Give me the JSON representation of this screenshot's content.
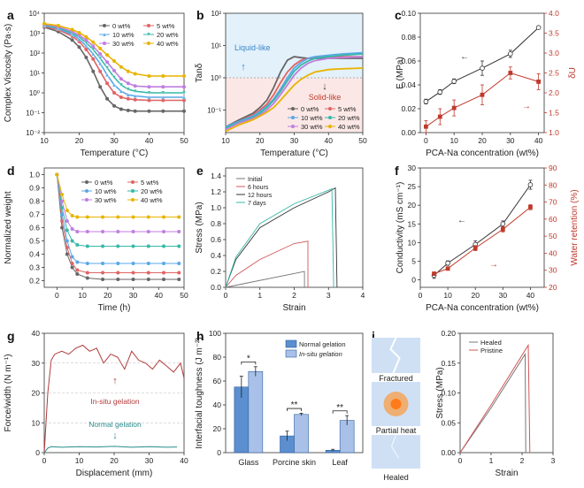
{
  "chart_data": [
    {
      "id": "a",
      "type": "line",
      "panel_label": "a",
      "xlabel": "Temperature (°C)",
      "ylabel": "Complex Viscosity (Pa·s)",
      "xlim": [
        10,
        50
      ],
      "ylim_log": [
        -2,
        4
      ],
      "xticks": [
        "10",
        "20",
        "30",
        "40",
        "50"
      ],
      "yticks": [
        "10⁻²",
        "10⁻¹",
        "10⁰",
        "10¹",
        "10²",
        "10³",
        "10⁴"
      ],
      "x": [
        10,
        14,
        18,
        20,
        22,
        24,
        26,
        28,
        30,
        32,
        34,
        36,
        40,
        44,
        50
      ],
      "series": [
        {
          "name": "0 wt%",
          "color": "#666666",
          "marker": "circle",
          "values": [
            2000,
            1200,
            450,
            200,
            60,
            12,
            2,
            0.5,
            0.22,
            0.15,
            0.13,
            0.12,
            0.12,
            0.12,
            0.12
          ]
        },
        {
          "name": "5 wt%",
          "color": "#e06464",
          "marker": "circle",
          "values": [
            2200,
            1500,
            700,
            380,
            150,
            50,
            12,
            3,
            1,
            0.6,
            0.5,
            0.45,
            0.42,
            0.42,
            0.42
          ]
        },
        {
          "name": "10 wt%",
          "color": "#5aa7e8",
          "marker": "triangle",
          "values": [
            2400,
            1700,
            850,
            500,
            230,
            90,
            30,
            8,
            2.5,
            1.2,
            0.8,
            0.7,
            0.6,
            0.6,
            0.6
          ]
        },
        {
          "name": "20 wt%",
          "color": "#36b8a8",
          "marker": "triangle-down",
          "values": [
            2600,
            1900,
            1000,
            650,
            330,
            150,
            55,
            18,
            6,
            2.5,
            1.5,
            1.2,
            1,
            1,
            1
          ]
        },
        {
          "name": "30 wt%",
          "color": "#c07ee0",
          "marker": "circle",
          "values": [
            2800,
            2100,
            1200,
            800,
            450,
            220,
            90,
            35,
            13,
            5,
            3,
            2.2,
            2,
            2,
            2
          ]
        },
        {
          "name": "40 wt%",
          "color": "#e8b400",
          "marker": "circle",
          "values": [
            3000,
            2400,
            1500,
            1050,
            650,
            350,
            170,
            80,
            40,
            20,
            12,
            9,
            7,
            7,
            7
          ]
        }
      ],
      "legend": [
        "0 wt%",
        "5 wt%",
        "10 wt%",
        "20 wt%",
        "30 wt%",
        "40 wt%"
      ]
    },
    {
      "id": "b",
      "type": "line",
      "panel_label": "b",
      "xlabel": "Temperature (°C)",
      "ylabel": "Tanδ",
      "xlim": [
        10,
        50
      ],
      "ylim_log": [
        -1.7,
        2
      ],
      "xticks": [
        "10",
        "20",
        "30",
        "40",
        "50"
      ],
      "yticks": [
        "10⁻¹",
        "10⁰",
        "10¹",
        "10²"
      ],
      "annotations": [
        "Liquid-like",
        "Solid-like"
      ],
      "x": [
        10,
        14,
        18,
        20,
        22,
        24,
        26,
        28,
        30,
        32,
        34,
        36,
        40,
        44,
        50
      ],
      "series": [
        {
          "name": "0 wt%",
          "color": "#666666",
          "values": [
            0.03,
            0.05,
            0.08,
            0.12,
            0.2,
            0.5,
            1.5,
            3.5,
            4.5,
            4.2,
            4,
            4,
            4,
            4,
            4
          ]
        },
        {
          "name": "5 wt%",
          "color": "#e06464",
          "values": [
            0.03,
            0.045,
            0.07,
            0.1,
            0.15,
            0.3,
            0.7,
            1.5,
            2.5,
            3.5,
            4,
            4.2,
            4.5,
            4.5,
            4.5
          ]
        },
        {
          "name": "10 wt%",
          "color": "#5aa7e8",
          "values": [
            0.03,
            0.045,
            0.065,
            0.09,
            0.13,
            0.22,
            0.45,
            1,
            2,
            3,
            4,
            4.5,
            5,
            5.5,
            6
          ]
        },
        {
          "name": "20 wt%",
          "color": "#36b8a8",
          "values": [
            0.028,
            0.042,
            0.06,
            0.08,
            0.12,
            0.2,
            0.38,
            0.8,
            1.6,
            2.5,
            3.3,
            4,
            4.5,
            5,
            5.5
          ]
        },
        {
          "name": "30 wt%",
          "color": "#c07ee0",
          "values": [
            0.025,
            0.04,
            0.055,
            0.07,
            0.1,
            0.16,
            0.3,
            0.6,
            1.2,
            2,
            2.8,
            3.4,
            4,
            4.2,
            4.5
          ]
        },
        {
          "name": "40 wt%",
          "color": "#e8b400",
          "values": [
            0.022,
            0.035,
            0.05,
            0.065,
            0.085,
            0.12,
            0.2,
            0.35,
            0.6,
            0.9,
            1.2,
            1.5,
            1.8,
            1.9,
            2
          ]
        }
      ],
      "legend": [
        "0 wt%",
        "5 wt%",
        "10 wt%",
        "20 wt%",
        "30 wt%",
        "40 wt%"
      ]
    },
    {
      "id": "c",
      "type": "line",
      "panel_label": "c",
      "xlabel": "PCA-Na concentration (wt%)",
      "ylabel": "E (MPa)",
      "ylabel2": "δU",
      "xlim": [
        -2,
        42
      ],
      "ylim": [
        0,
        0.1
      ],
      "ylim2": [
        1,
        4
      ],
      "xticks": [
        "0",
        "10",
        "20",
        "30",
        "40"
      ],
      "yticks": [
        "0.00",
        "0.02",
        "0.04",
        "0.06",
        "0.08",
        "0.10"
      ],
      "yticks2": [
        "1.0",
        "1.5",
        "2.0",
        "2.5",
        "3.0",
        "3.5",
        "4.0"
      ],
      "x": [
        0,
        5,
        10,
        20,
        30,
        40
      ],
      "series": [
        {
          "name": "E",
          "color": "#333333",
          "axis": "left",
          "values": [
            0.026,
            0.034,
            0.043,
            0.054,
            0.066,
            0.088
          ],
          "errors": [
            0.002,
            0.002,
            0.002,
            0.006,
            0.003,
            0.001
          ]
        },
        {
          "name": "δU",
          "color": "#c0392b",
          "axis": "right",
          "values": [
            1.15,
            1.4,
            1.62,
            1.95,
            2.5,
            2.28
          ],
          "errors": [
            0.15,
            0.2,
            0.2,
            0.25,
            0.15,
            0.2
          ]
        }
      ]
    },
    {
      "id": "d",
      "type": "line",
      "panel_label": "d",
      "xlabel": "Time (h)",
      "ylabel": "Normalized weight",
      "xlim": [
        -5,
        50
      ],
      "ylim": [
        0.15,
        1.05
      ],
      "xticks": [
        "0",
        "10",
        "20",
        "30",
        "40",
        "50"
      ],
      "yticks": [
        "0.2",
        "0.3",
        "0.4",
        "0.5",
        "0.6",
        "0.7",
        "0.8",
        "0.9",
        "1.0"
      ],
      "x": [
        0,
        2,
        4,
        6,
        8,
        12,
        18,
        24,
        30,
        36,
        42,
        48
      ],
      "series": [
        {
          "name": "0 wt%",
          "color": "#666666",
          "values": [
            1,
            0.6,
            0.4,
            0.3,
            0.25,
            0.22,
            0.21,
            0.21,
            0.21,
            0.21,
            0.21,
            0.21
          ]
        },
        {
          "name": "5 wt%",
          "color": "#e06464",
          "values": [
            1,
            0.65,
            0.45,
            0.33,
            0.28,
            0.26,
            0.26,
            0.26,
            0.26,
            0.26,
            0.26,
            0.26
          ]
        },
        {
          "name": "10 wt%",
          "color": "#5aa7e8",
          "values": [
            1,
            0.7,
            0.5,
            0.38,
            0.34,
            0.33,
            0.33,
            0.33,
            0.33,
            0.33,
            0.33,
            0.33
          ]
        },
        {
          "name": "20 wt%",
          "color": "#36b8a8",
          "values": [
            1,
            0.75,
            0.58,
            0.5,
            0.47,
            0.46,
            0.46,
            0.46,
            0.46,
            0.46,
            0.46,
            0.46
          ]
        },
        {
          "name": "30 wt%",
          "color": "#c07ee0",
          "values": [
            1,
            0.8,
            0.65,
            0.59,
            0.57,
            0.57,
            0.57,
            0.57,
            0.57,
            0.57,
            0.57,
            0.57
          ]
        },
        {
          "name": "40 wt%",
          "color": "#e8b400",
          "values": [
            1,
            0.85,
            0.73,
            0.69,
            0.68,
            0.68,
            0.68,
            0.68,
            0.68,
            0.68,
            0.68,
            0.68
          ]
        }
      ],
      "legend": [
        "0 wt%",
        "5 wt%",
        "10 wt%",
        "20 wt%",
        "30 wt%",
        "40 wt%"
      ]
    },
    {
      "id": "e",
      "type": "line",
      "panel_label": "e",
      "xlabel": "Strain",
      "ylabel": "Stress (MPa)",
      "xlim": [
        0,
        4
      ],
      "ylim": [
        0,
        1.5
      ],
      "xticks": [
        "0",
        "1",
        "2",
        "3",
        "4"
      ],
      "yticks": [
        "0.0",
        "0.2",
        "0.4",
        "0.6",
        "0.8",
        "1.0",
        "1.2",
        "1.4"
      ],
      "series": [
        {
          "name": "Initial",
          "color": "#777777",
          "x": [
            0,
            2.3,
            2.3
          ],
          "values": [
            0,
            0.2,
            0
          ]
        },
        {
          "name": "6 hours",
          "color": "#d0575a",
          "x": [
            0,
            0.3,
            1,
            2,
            2.4,
            2.4
          ],
          "values": [
            0,
            0.15,
            0.35,
            0.55,
            0.58,
            0
          ]
        },
        {
          "name": "12 hours",
          "color": "#333333",
          "x": [
            0,
            0.3,
            1,
            2,
            3,
            3.2,
            3.25
          ],
          "values": [
            0,
            0.35,
            0.75,
            1.0,
            1.2,
            1.25,
            0
          ]
        },
        {
          "name": "7 days",
          "color": "#36b8a8",
          "x": [
            0,
            0.3,
            1,
            2,
            3,
            3.1,
            3.15
          ],
          "values": [
            0,
            0.38,
            0.8,
            1.05,
            1.22,
            1.24,
            0
          ]
        }
      ],
      "legend": [
        "Initial",
        "6 hours",
        "12 hours",
        "7 days"
      ]
    },
    {
      "id": "f",
      "type": "line",
      "panel_label": "f",
      "xlabel": "PCA-Na concentration (wt%)",
      "ylabel": "Conductivity (mS cm⁻¹)",
      "ylabel2": "Water retention (%)",
      "xlim": [
        0,
        45
      ],
      "ylim": [
        -2,
        30
      ],
      "ylim2": [
        20,
        90
      ],
      "xticks": [
        "0",
        "10",
        "20",
        "30",
        "40"
      ],
      "yticks": [
        "0",
        "5",
        "10",
        "15",
        "20",
        "25",
        "30"
      ],
      "yticks2": [
        "20",
        "30",
        "40",
        "50",
        "60",
        "70",
        "80",
        "90"
      ],
      "x": [
        5,
        10,
        20,
        30,
        40
      ],
      "series": [
        {
          "name": "Conductivity",
          "color": "#333333",
          "axis": "left",
          "values": [
            1.2,
            4.5,
            9.5,
            15,
            25.5
          ],
          "errors": [
            0.8,
            0.6,
            1,
            0.8,
            1.2
          ]
        },
        {
          "name": "Water retention",
          "color": "#c0392b",
          "axis": "right",
          "values": [
            28,
            31,
            43,
            54,
            67
          ],
          "errors": [
            1,
            1,
            1.5,
            1.5,
            1.5
          ]
        }
      ]
    },
    {
      "id": "g",
      "type": "line",
      "panel_label": "g",
      "xlabel": "Displacement (mm)",
      "ylabel": "Force/width (N m⁻¹)",
      "xlim": [
        0,
        40
      ],
      "ylim": [
        0,
        40
      ],
      "xticks": [
        "0",
        "10",
        "20",
        "30",
        "40"
      ],
      "yticks": [
        "0",
        "10",
        "20",
        "30",
        "40"
      ],
      "annotations": [
        "In-situ gelation",
        "Normal gelation"
      ],
      "series": [
        {
          "name": "In-situ gelation",
          "color": "#b03a3a",
          "x": [
            0,
            1,
            2,
            3,
            5,
            7,
            9,
            11,
            13,
            15,
            17,
            19,
            21,
            23,
            25,
            27,
            29,
            31,
            33,
            35,
            37,
            39,
            40
          ],
          "values": [
            0,
            20,
            31,
            33,
            34,
            33,
            35,
            36,
            34,
            35,
            30,
            33,
            32,
            28,
            34,
            31,
            30,
            28,
            31,
            29,
            27,
            30,
            25
          ]
        },
        {
          "name": "Normal gelation",
          "color": "#2a8c8c",
          "x": [
            0,
            1,
            2,
            5,
            10,
            15,
            20,
            25,
            30,
            35,
            38
          ],
          "values": [
            0,
            1.5,
            2,
            1.8,
            2,
            1.9,
            2.1,
            1.8,
            2,
            1.8,
            1.9
          ]
        }
      ]
    },
    {
      "id": "h",
      "type": "bar",
      "panel_label": "h",
      "xlabel": "",
      "ylabel": "Interfacial toughness (J m⁻²)",
      "ylim": [
        0,
        100
      ],
      "yticks": [
        "0",
        "20",
        "40",
        "60",
        "80",
        "100"
      ],
      "categories": [
        "Glass",
        "Porcine skin",
        "Leaf"
      ],
      "series": [
        {
          "name": "Normal gelation",
          "color": "#5b8fd0",
          "values": [
            55,
            14,
            2
          ],
          "errors": [
            9,
            4,
            0.8
          ]
        },
        {
          "name": "In-situ gelation",
          "color": "#a9c1e8",
          "values": [
            68,
            32,
            27
          ],
          "errors": [
            4,
            1,
            4
          ]
        }
      ],
      "significance": [
        "*",
        "**",
        "**"
      ],
      "legend": [
        "Normal gelation",
        "In-situ gelation"
      ]
    },
    {
      "id": "i",
      "type": "line",
      "panel_label": "i",
      "xlabel": "Strain",
      "ylabel": "Stress (MPa)",
      "xlim": [
        0,
        3
      ],
      "ylim": [
        0,
        0.2
      ],
      "xticks": [
        "0",
        "1",
        "2",
        "3"
      ],
      "yticks": [
        "0.00",
        "0.05",
        "0.10",
        "0.15",
        "0.20"
      ],
      "images": [
        "Fractured",
        "Partial heat",
        "Healed"
      ],
      "series": [
        {
          "name": "Healed",
          "color": "#777777",
          "x": [
            0,
            1,
            2.1,
            2.12
          ],
          "values": [
            0,
            0.075,
            0.165,
            0
          ]
        },
        {
          "name": "Pristine",
          "color": "#d0575a",
          "x": [
            0,
            1,
            2.2,
            2.25
          ],
          "values": [
            0,
            0.08,
            0.18,
            0
          ]
        }
      ],
      "legend": [
        "Healed",
        "Pristine"
      ]
    }
  ]
}
